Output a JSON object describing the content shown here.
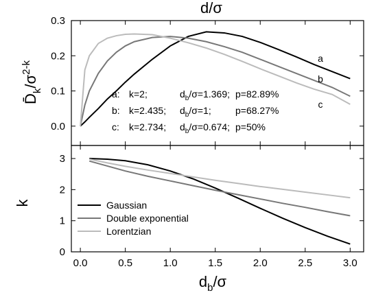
{
  "chart_data": [
    {
      "type": "line",
      "title": "d/σ",
      "ylabel": {
        "main": "D̄",
        "sub": "k",
        "rest": "/σ",
        "sup": "2-k"
      },
      "x": [
        0,
        0.05,
        0.1,
        0.2,
        0.3,
        0.4,
        0.5,
        0.6,
        0.8,
        1.0,
        1.2,
        1.4,
        1.6,
        1.8,
        2.0,
        2.2,
        2.4,
        2.6,
        2.8,
        3.0
      ],
      "series": [
        {
          "name": "a",
          "color": "#000000",
          "values": [
            0,
            0.012,
            0.025,
            0.05,
            0.077,
            0.1,
            0.125,
            0.148,
            0.19,
            0.228,
            0.255,
            0.268,
            0.265,
            0.255,
            0.238,
            0.218,
            0.197,
            0.175,
            0.155,
            0.135
          ]
        },
        {
          "name": "b",
          "color": "#777777",
          "values": [
            0,
            0.06,
            0.1,
            0.15,
            0.185,
            0.21,
            0.228,
            0.24,
            0.252,
            0.255,
            0.25,
            0.24,
            0.226,
            0.21,
            0.19,
            0.17,
            0.15,
            0.13,
            0.11,
            0.085
          ]
        },
        {
          "name": "c",
          "color": "#bbbbbb",
          "values": [
            0,
            0.16,
            0.2,
            0.235,
            0.25,
            0.257,
            0.261,
            0.262,
            0.26,
            0.25,
            0.237,
            0.222,
            0.204,
            0.184,
            0.163,
            0.143,
            0.123,
            0.105,
            0.09,
            0.062
          ]
        }
      ],
      "annotations": [
        {
          "label": "a:",
          "k": "k=2;",
          "d": "d",
          "sub": "b",
          "ratio": "/σ=1.369;",
          "p": "p=82.89%"
        },
        {
          "label": "b:",
          "k": "k=2.435;",
          "d": "d",
          "sub": "b",
          "ratio": "/σ=1;",
          "p": "p=68.27%"
        },
        {
          "label": "c:",
          "k": "k=2.734;",
          "d": "d",
          "sub": "b",
          "ratio": "/σ=0.674;",
          "p": "p=50%"
        }
      ],
      "ylim": [
        -0.055,
        0.3
      ],
      "yticks": [
        {
          "value": 0,
          "label": "0.0"
        },
        0.1,
        0.2,
        0.3
      ]
    },
    {
      "type": "line",
      "ylabel": "k",
      "xlabel": {
        "main": "d",
        "sub": "b",
        "rest": "/σ"
      },
      "x": [
        0.1,
        0.3,
        0.5,
        0.75,
        1.0,
        1.25,
        1.5,
        1.75,
        2.0,
        2.25,
        2.5,
        2.75,
        3.0
      ],
      "series": [
        {
          "name": "Gaussian",
          "color": "#000000",
          "values": [
            3.0,
            2.98,
            2.93,
            2.8,
            2.6,
            2.35,
            2.05,
            1.73,
            1.4,
            1.08,
            0.78,
            0.5,
            0.25
          ]
        },
        {
          "name": "Double exponential",
          "color": "#777777",
          "values": [
            2.92,
            2.76,
            2.6,
            2.43,
            2.28,
            2.13,
            1.98,
            1.84,
            1.7,
            1.56,
            1.43,
            1.29,
            1.16
          ]
        },
        {
          "name": "Lorentzian",
          "color": "#bbbbbb",
          "values": [
            2.98,
            2.86,
            2.75,
            2.63,
            2.52,
            2.41,
            2.3,
            2.2,
            2.1,
            2.01,
            1.92,
            1.83,
            1.74
          ]
        }
      ],
      "legend": "lower left",
      "xlim": [
        -0.1,
        3.15
      ],
      "xticks": [
        {
          "value": 0,
          "label": "0.0"
        },
        0.5,
        {
          "value": 1,
          "label": "1.0"
        },
        1.5,
        {
          "value": 2,
          "label": "2.0"
        },
        2.5,
        {
          "value": 3,
          "label": "3.0"
        }
      ],
      "ylim": [
        0,
        3.42
      ],
      "yticks": [
        0,
        1,
        2,
        3
      ]
    }
  ]
}
